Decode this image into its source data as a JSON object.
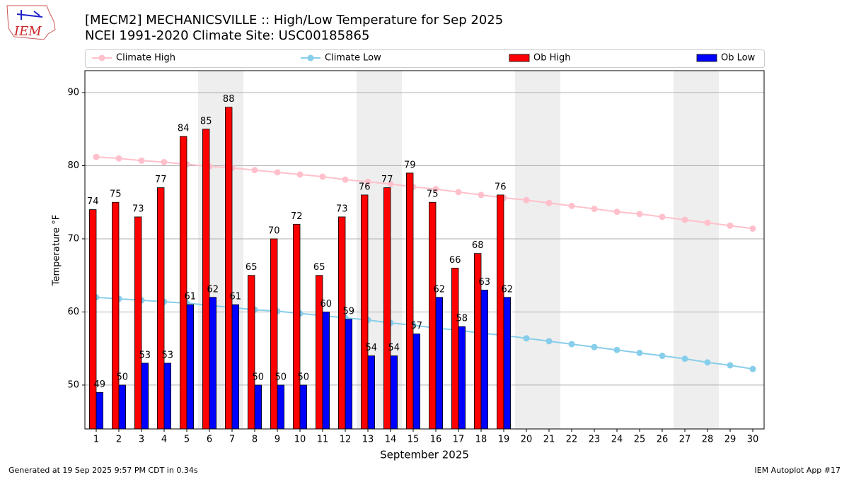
{
  "logo": "IEM",
  "footer_left": "Generated at 19 Sep 2025 9:57 PM CDT in 0.34s",
  "footer_right": "IEM Autoplot App #17",
  "chart_data": {
    "type": "bar",
    "title": "[MECM2] MECHANICSVILLE :: High/Low Temperature for Sep 2025",
    "subtitle": "NCEI 1991-2020 Climate Site: USC00185865",
    "x_label": "September 2025",
    "y_label": "Temperature °F",
    "x": [
      1,
      2,
      3,
      4,
      5,
      6,
      7,
      8,
      9,
      10,
      11,
      12,
      13,
      14,
      15,
      16,
      17,
      18,
      19,
      20,
      21,
      22,
      23,
      24,
      25,
      26,
      27,
      28,
      29,
      30
    ],
    "xlim": [
      0.5,
      30.5
    ],
    "xticks": [
      1,
      2,
      3,
      4,
      5,
      6,
      7,
      8,
      9,
      10,
      11,
      12,
      13,
      14,
      15,
      16,
      17,
      18,
      19,
      20,
      21,
      22,
      23,
      24,
      25,
      26,
      27,
      28,
      29,
      30
    ],
    "ylim": [
      44,
      93
    ],
    "yticks": [
      50,
      60,
      70,
      80,
      90
    ],
    "grid": true,
    "legend": "top",
    "highlight_days": [
      6,
      7,
      13,
      14,
      20,
      21,
      27,
      28
    ],
    "highlight_color": "#eeeeee",
    "series": [
      {
        "name": "Climate High",
        "type": "line",
        "color": "#ffc0cb",
        "values": [
          81.2,
          81.0,
          80.7,
          80.5,
          80.2,
          79.9,
          79.7,
          79.4,
          79.1,
          78.8,
          78.5,
          78.1,
          77.8,
          77.5,
          77.1,
          76.8,
          76.4,
          76.0,
          75.6,
          75.3,
          74.9,
          74.5,
          74.1,
          73.7,
          73.4,
          73.0,
          72.6,
          72.2,
          71.8,
          71.4
        ]
      },
      {
        "name": "Climate Low",
        "type": "line",
        "color": "#87ceeb",
        "values": [
          62.0,
          61.8,
          61.6,
          61.4,
          61.2,
          60.9,
          60.6,
          60.3,
          60.1,
          59.8,
          59.5,
          59.2,
          58.9,
          58.5,
          58.2,
          57.8,
          57.5,
          57.1,
          56.8,
          56.4,
          56.0,
          55.6,
          55.2,
          54.8,
          54.4,
          54.0,
          53.6,
          53.1,
          52.7,
          52.2
        ]
      },
      {
        "name": "Ob High",
        "type": "bar",
        "color": "#ff0000",
        "offset": -1,
        "values": [
          74,
          75,
          73,
          77,
          84,
          85,
          88,
          65,
          70,
          72,
          65,
          73,
          76,
          77,
          79,
          75,
          66,
          68,
          76,
          null,
          null,
          null,
          null,
          null,
          null,
          null,
          null,
          null,
          null,
          null
        ]
      },
      {
        "name": "Ob Low",
        "type": "bar",
        "color": "#0000ff",
        "offset": 1,
        "values": [
          49,
          50,
          53,
          53,
          61,
          62,
          61,
          50,
          50,
          50,
          60,
          59,
          54,
          54,
          57,
          62,
          58,
          63,
          62,
          null,
          null,
          null,
          null,
          null,
          null,
          null,
          null,
          null,
          null,
          null
        ]
      }
    ]
  }
}
